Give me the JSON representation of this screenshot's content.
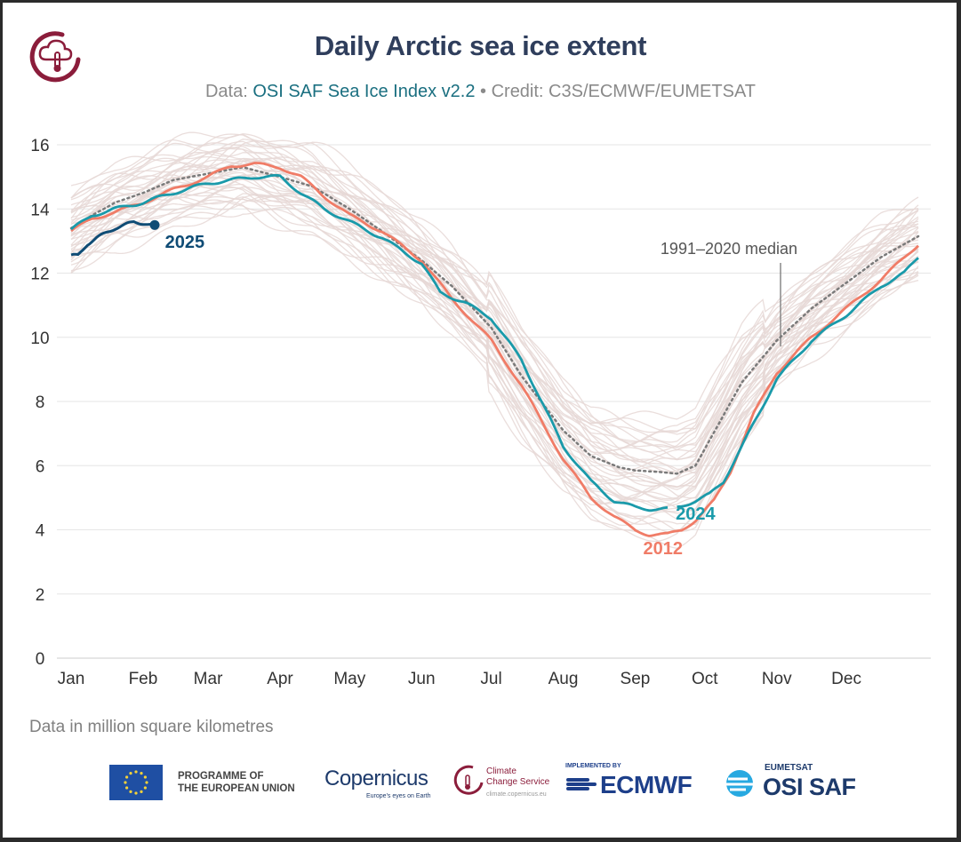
{
  "header": {
    "title": "Daily Arctic sea ice extent",
    "subtitle_prefix": "Data: ",
    "subtitle_dataset": "OSI SAF Sea Ice Index v2.2",
    "subtitle_suffix": " • Credit: C3S/ECMWF/EUMETSAT"
  },
  "footnote": "Data in million square kilometres",
  "partners": {
    "eu_line1": "PROGRAMME OF",
    "eu_line2": "THE EUROPEAN UNION",
    "copernicus": "Copernicus",
    "copernicus_tagline": "Europe's eyes on Earth",
    "c3s_line1": "Climate",
    "c3s_line2": "Change Service",
    "c3s_url": "climate.copernicus.eu",
    "ecmwf_small": "IMPLEMENTED BY",
    "ecmwf": "ECMWF",
    "osisaf_small": "EUMETSAT",
    "osisaf": "OSI SAF"
  },
  "colors": {
    "title": "#2f3e5c",
    "background_years": "#e6d8d6",
    "median": "#7a7a7a",
    "y2012": "#f07c67",
    "y2024": "#1a9aaa",
    "y2025": "#0f4c75",
    "grid": "#e6e6e6",
    "axis_text": "#333333"
  },
  "chart_data": {
    "type": "line",
    "title": "Daily Arctic sea ice extent",
    "ylabel": "",
    "xlabel": "",
    "ylim": [
      0,
      16
    ],
    "yticks": [
      0,
      2,
      4,
      6,
      8,
      10,
      12,
      14,
      16
    ],
    "xlim": [
      1,
      366
    ],
    "month_labels": [
      "Jan",
      "Feb",
      "Mar",
      "Apr",
      "May",
      "Jun",
      "Jul",
      "Aug",
      "Sep",
      "Oct",
      "Nov",
      "Dec"
    ],
    "month_start_days": [
      1,
      32,
      60,
      91,
      121,
      152,
      182,
      213,
      244,
      274,
      305,
      335
    ],
    "grid": true,
    "median_annotation": "1991–2020 median",
    "series": [
      {
        "name": "1991–2020 median",
        "style": "dotted",
        "x": [
          1,
          10,
          20,
          32,
          45,
          60,
          75,
          91,
          105,
          121,
          135,
          152,
          165,
          182,
          195,
          213,
          225,
          237,
          244,
          255,
          262,
          270,
          280,
          290,
          305,
          320,
          335,
          350,
          366
        ],
        "y": [
          13.4,
          13.8,
          14.2,
          14.5,
          14.9,
          15.1,
          15.3,
          15.0,
          14.7,
          14.0,
          13.3,
          12.4,
          11.6,
          10.3,
          8.8,
          7.1,
          6.3,
          5.95,
          5.85,
          5.8,
          5.75,
          6.0,
          7.3,
          8.6,
          9.9,
          10.9,
          11.7,
          12.5,
          13.15
        ]
      },
      {
        "name": "2012",
        "x": [
          1,
          10,
          20,
          32,
          45,
          60,
          70,
          80,
          91,
          100,
          110,
          121,
          135,
          152,
          165,
          182,
          195,
          213,
          225,
          235,
          244,
          250,
          258,
          264,
          270,
          278,
          285,
          295,
          305,
          320,
          335,
          350,
          366
        ],
        "y": [
          13.3,
          13.7,
          13.9,
          14.2,
          14.6,
          15.0,
          15.35,
          15.4,
          15.3,
          15.0,
          14.4,
          13.8,
          13.3,
          12.4,
          11.2,
          9.9,
          8.5,
          6.2,
          5.0,
          4.4,
          4.0,
          3.85,
          3.85,
          4.0,
          4.3,
          4.9,
          5.8,
          7.6,
          8.9,
          10.0,
          10.9,
          11.8,
          12.9
        ]
      },
      {
        "name": "2024",
        "x": [
          1,
          10,
          20,
          32,
          45,
          60,
          70,
          80,
          91,
          100,
          110,
          121,
          135,
          152,
          160,
          170,
          182,
          195,
          213,
          225,
          235,
          244,
          250,
          258,
          262,
          270,
          276,
          282,
          290,
          305,
          320,
          335,
          350,
          360,
          366
        ],
        "y": [
          13.35,
          13.8,
          14.0,
          14.2,
          14.5,
          14.8,
          14.9,
          15.0,
          15.0,
          14.5,
          14.0,
          13.6,
          13.1,
          12.3,
          11.4,
          11.1,
          10.6,
          9.3,
          6.6,
          5.5,
          4.9,
          4.7,
          4.65,
          4.65,
          4.7,
          4.9,
          5.1,
          5.5,
          6.6,
          8.7,
          9.9,
          10.7,
          11.6,
          12.0,
          12.5
        ]
      },
      {
        "name": "2025",
        "x": [
          1,
          4,
          8,
          12,
          16,
          20,
          24,
          28,
          32,
          35,
          37
        ],
        "y": [
          12.55,
          12.55,
          12.9,
          13.1,
          13.25,
          13.4,
          13.5,
          13.6,
          13.55,
          13.5,
          13.5
        ]
      }
    ],
    "series_labels": [
      "2025",
      "2024",
      "2012"
    ]
  }
}
